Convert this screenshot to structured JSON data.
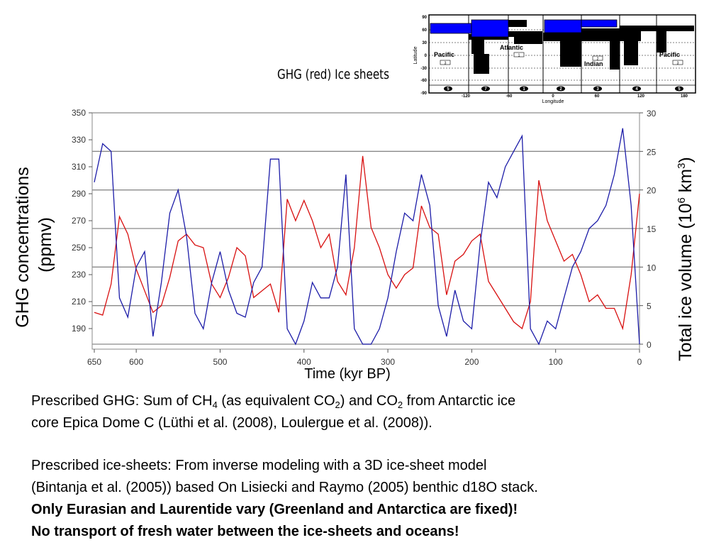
{
  "chart_data": {
    "type": "line",
    "title": "GHG (red) Ice sheets",
    "xlabel": "Time (kyr BP)",
    "ylabel": [
      "GHG concentrations",
      "(ppmv)"
    ],
    "y2label": [
      "Total ice volume (10",
      "6",
      " km",
      "3",
      ")"
    ],
    "x": [
      650,
      640,
      630,
      620,
      610,
      600,
      590,
      580,
      570,
      560,
      550,
      540,
      530,
      520,
      510,
      500,
      490,
      480,
      470,
      460,
      450,
      440,
      430,
      420,
      410,
      400,
      390,
      380,
      370,
      360,
      350,
      340,
      330,
      320,
      310,
      300,
      290,
      280,
      270,
      260,
      250,
      240,
      230,
      220,
      210,
      200,
      190,
      180,
      170,
      160,
      150,
      140,
      130,
      120,
      110,
      100,
      90,
      80,
      70,
      60,
      50,
      40,
      30,
      20,
      10,
      0
    ],
    "xlim": [
      650,
      0
    ],
    "xticks": [
      650,
      600,
      500,
      400,
      300,
      200,
      100,
      0
    ],
    "ylim": [
      170,
      350
    ],
    "yticks": [
      190,
      210,
      230,
      250,
      270,
      290,
      310,
      330,
      350
    ],
    "y2lim": [
      0,
      30
    ],
    "y2ticks": [
      0,
      5,
      10,
      15,
      20,
      25,
      30
    ],
    "grid": true,
    "series": [
      {
        "name": "GHG",
        "color": "#d81010",
        "values": [
          202,
          200,
          223,
          273,
          260,
          234,
          218,
          202,
          207,
          228,
          255,
          260,
          252,
          250,
          223,
          213,
          228,
          250,
          244,
          213,
          218,
          223,
          202,
          286,
          270,
          285,
          270,
          250,
          260,
          225,
          215,
          250,
          318,
          265,
          250,
          230,
          220,
          230,
          235,
          281,
          265,
          260,
          215,
          240,
          245,
          255,
          260,
          225,
          215,
          205,
          195,
          190,
          210,
          300,
          270,
          255,
          240,
          245,
          230,
          210,
          215,
          205,
          205,
          190,
          230,
          290
        ]
      },
      {
        "name": "Ice volume",
        "color": "#1c1ca8",
        "axis": "y2",
        "values": [
          21,
          26,
          25,
          6,
          3.5,
          10,
          12,
          1,
          8,
          17,
          20,
          14,
          4,
          2,
          8,
          12,
          7,
          4,
          3.5,
          8,
          10,
          24,
          24,
          2,
          0,
          3,
          8,
          6,
          6,
          10,
          22,
          2,
          0,
          0,
          2,
          6,
          12,
          17,
          16,
          22,
          18,
          5,
          1,
          7,
          3,
          2,
          13,
          21,
          19,
          23,
          25,
          27,
          2,
          0,
          3,
          2,
          6,
          10,
          12,
          15,
          16,
          18,
          22,
          28,
          18,
          0
        ]
      }
    ]
  },
  "inset": {
    "ylabel": "Latitude",
    "xlabel": "Longitude",
    "lat_ticks": [
      "90",
      "60",
      "30",
      "0",
      "-30",
      "-60",
      "-90"
    ],
    "lon_ticks": [
      "-120",
      "-60",
      "0",
      "60",
      "120",
      "180"
    ],
    "regions": [
      "5",
      "7",
      "1",
      "2",
      "3",
      "4",
      "5"
    ],
    "basins": [
      {
        "name": "Pacific",
        "box": "3"
      },
      {
        "name": "Atlantic",
        "box": "1"
      },
      {
        "name": "Indian",
        "box": "2"
      },
      {
        "name": "Pacific",
        "box": "3"
      }
    ]
  },
  "notes": {
    "ghg": [
      "Prescribed GHG: Sum of CH",
      "4",
      " (as equivalent CO",
      "2",
      ") and CO",
      "2",
      " from Antarctic ice",
      "core Epica Dome C (Lüthi et al. (2008), Loulergue et al. (2008))."
    ],
    "ice": [
      "Prescribed ice-sheets: From inverse modeling with a 3D ice-sheet model",
      "(Bintanja et al. (2005)) based On Lisiecki and Raymo (2005) benthic d18O stack."
    ],
    "emphasis": [
      "Only Eurasian and Laurentide vary (Greenland and Antarctica are fixed)!",
      "No transport of fresh water between the ice-sheets and oceans!"
    ]
  }
}
